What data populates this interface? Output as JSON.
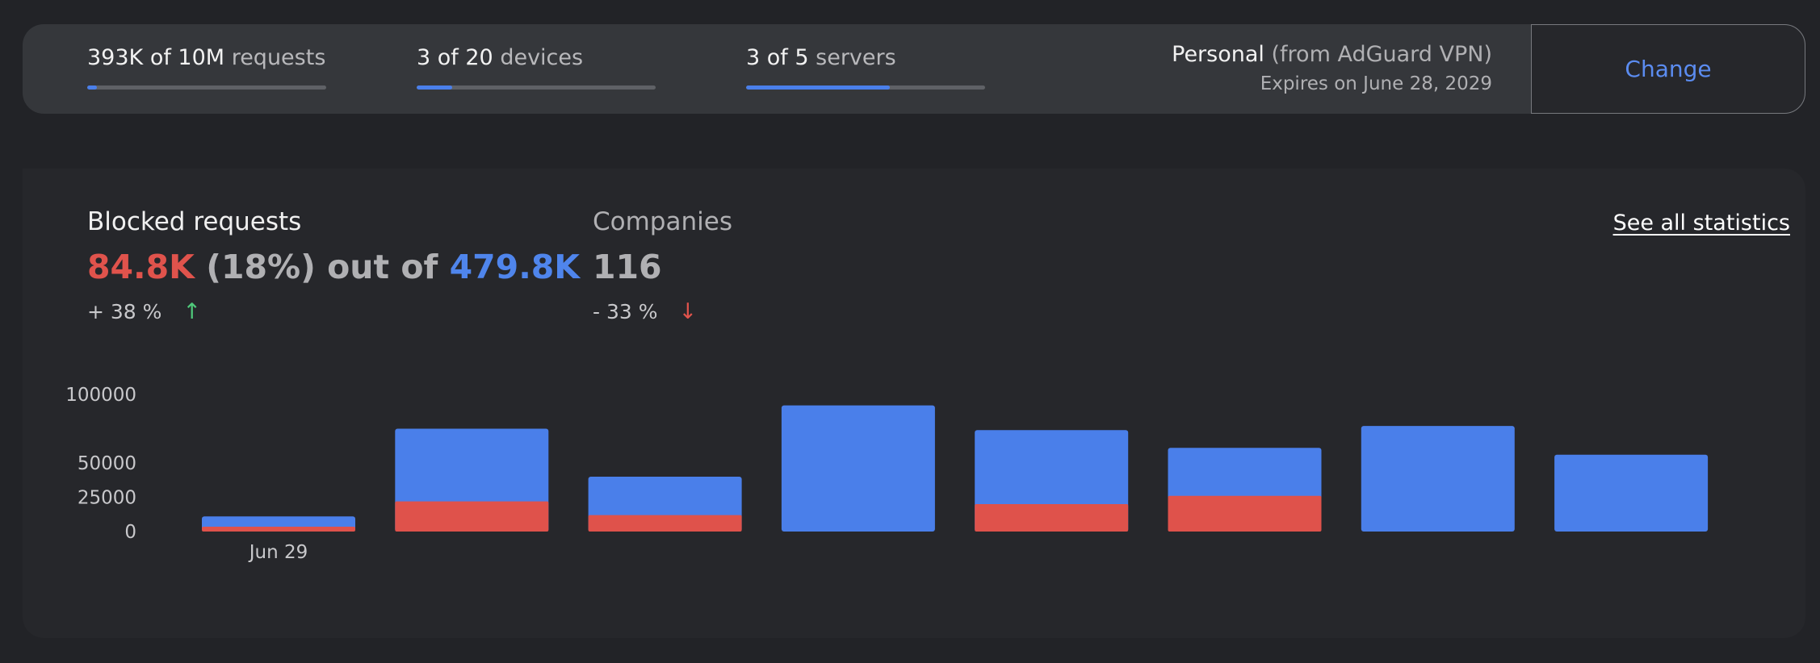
{
  "usage": [
    {
      "amount": "393K of 10M",
      "unit": "requests",
      "progress": 0.0393
    },
    {
      "amount": "3 of 20",
      "unit": "devices",
      "progress": 0.15
    },
    {
      "amount": "3 of 5",
      "unit": "servers",
      "progress": 0.6
    }
  ],
  "plan": {
    "name": "Personal",
    "source": "(from AdGuard VPN)",
    "expires": "Expires on June 28, 2029",
    "change_label": "Change"
  },
  "stats": {
    "blocked": {
      "title": "Blocked requests",
      "blocked_value": "84.8K",
      "percent": "(18%) out of",
      "total_value": "479.8K",
      "change": "+ 38 %",
      "arrow": "↑"
    },
    "companies": {
      "title": "Companies",
      "value": "116",
      "change": "- 33 %",
      "arrow": "↓"
    },
    "see_all": "See all statistics"
  },
  "colors": {
    "total": "#4a7fea",
    "blocked": "#df524b"
  },
  "chart_data": {
    "type": "bar",
    "stacked": true,
    "categories": [
      "Jun 29",
      "",
      "",
      "",
      "",
      "",
      "",
      ""
    ],
    "series": [
      {
        "name": "",
        "values": [
          11000,
          75000,
          40000,
          92000,
          74000,
          61000,
          77000,
          56000
        ]
      },
      {
        "name": "",
        "values": [
          3500,
          22000,
          12000,
          0,
          20000,
          26000,
          0,
          0
        ]
      }
    ],
    "yticks": [
      0,
      25000,
      50000,
      100000
    ],
    "ylim": [
      0,
      100000
    ],
    "xlabel": "",
    "ylabel": ""
  }
}
